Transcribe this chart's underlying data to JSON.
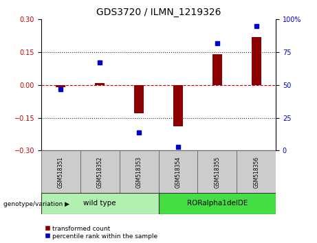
{
  "title": "GDS3720 / ILMN_1219326",
  "samples": [
    "GSM518351",
    "GSM518352",
    "GSM518353",
    "GSM518354",
    "GSM518355",
    "GSM518356"
  ],
  "bar_values": [
    -0.01,
    0.01,
    -0.13,
    -0.19,
    0.14,
    0.22
  ],
  "scatter_values": [
    47,
    67,
    14,
    3,
    82,
    95
  ],
  "groups": [
    {
      "label": "wild type",
      "start": 0,
      "end": 3,
      "color": "#b2f0b2"
    },
    {
      "label": "RORalpha1delDE",
      "start": 3,
      "end": 6,
      "color": "#44dd44"
    }
  ],
  "bar_color": "#8B0000",
  "scatter_color": "#0000CC",
  "ylim_left": [
    -0.3,
    0.3
  ],
  "ylim_right": [
    0,
    100
  ],
  "yticks_left": [
    -0.3,
    -0.15,
    0,
    0.15,
    0.3
  ],
  "yticks_right": [
    0,
    25,
    50,
    75,
    100
  ],
  "hline_color": "#CC0000",
  "dotted_color": "#222222",
  "background_color": "#ffffff",
  "legend_labels": [
    "transformed count",
    "percentile rank within the sample"
  ],
  "genotype_label": "genotype/variation"
}
